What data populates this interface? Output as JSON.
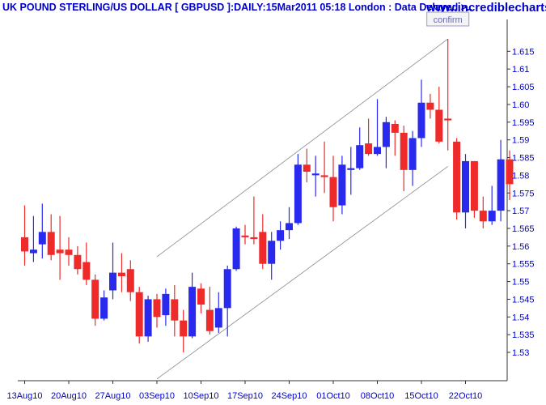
{
  "header": {
    "title": "UK POUND STERLING/US DOLLAR [ GBPUSD ]:DAILY:15Mar2011 05:18 London : Data Delayed >..",
    "brand": "www.incrediblecharts.com"
  },
  "colors": {
    "up": "#2a2aee",
    "down": "#ee2a2a",
    "text": "#0000cc",
    "channel": "#8a8a8a"
  },
  "chart_data": {
    "type": "candlestick",
    "ylim": [
      1.522,
      1.624
    ],
    "y_ticks": [
      1.53,
      1.535,
      1.54,
      1.545,
      1.55,
      1.555,
      1.56,
      1.565,
      1.57,
      1.575,
      1.58,
      1.585,
      1.59,
      1.595,
      1.6,
      1.605,
      1.61,
      1.615
    ],
    "y_tick_labels": [
      "1.53",
      "1.535",
      "1.54",
      "1.545",
      "1.55",
      "1.555",
      "1.56",
      "1.565",
      "1.57",
      "1.575",
      "1.58",
      "1.585",
      "1.59",
      "1.595",
      "1.60",
      "1.605",
      "1.61",
      "1.615"
    ],
    "x_labels": [
      {
        "label": "13Aug10",
        "index": 0
      },
      {
        "label": "20Aug10",
        "index": 5
      },
      {
        "label": "27Aug10",
        "index": 10
      },
      {
        "label": "03Sep10",
        "index": 15
      },
      {
        "label": "10Sep10",
        "index": 20
      },
      {
        "label": "17Sep10",
        "index": 25
      },
      {
        "label": "24Sep10",
        "index": 30
      },
      {
        "label": "01Oct10",
        "index": 35
      },
      {
        "label": "08Oct10",
        "index": 40
      },
      {
        "label": "15Oct10",
        "index": 45
      },
      {
        "label": "22Oct10",
        "index": 50
      }
    ],
    "candles": [
      {
        "o": 1.5625,
        "h": 1.5715,
        "l": 1.5545,
        "c": 1.5585
      },
      {
        "o": 1.558,
        "h": 1.5685,
        "l": 1.5555,
        "c": 1.559
      },
      {
        "o": 1.5605,
        "h": 1.572,
        "l": 1.5565,
        "c": 1.564
      },
      {
        "o": 1.564,
        "h": 1.569,
        "l": 1.556,
        "c": 1.5575
      },
      {
        "o": 1.559,
        "h": 1.5685,
        "l": 1.5505,
        "c": 1.558
      },
      {
        "o": 1.559,
        "h": 1.5625,
        "l": 1.5545,
        "c": 1.5575
      },
      {
        "o": 1.5575,
        "h": 1.56,
        "l": 1.552,
        "c": 1.5535
      },
      {
        "o": 1.5555,
        "h": 1.561,
        "l": 1.549,
        "c": 1.5505
      },
      {
        "o": 1.5505,
        "h": 1.552,
        "l": 1.5375,
        "c": 1.5395
      },
      {
        "o": 1.5395,
        "h": 1.5475,
        "l": 1.539,
        "c": 1.5455
      },
      {
        "o": 1.5475,
        "h": 1.561,
        "l": 1.545,
        "c": 1.5525
      },
      {
        "o": 1.5525,
        "h": 1.558,
        "l": 1.547,
        "c": 1.5515
      },
      {
        "o": 1.5535,
        "h": 1.556,
        "l": 1.5445,
        "c": 1.547
      },
      {
        "o": 1.547,
        "h": 1.5485,
        "l": 1.5325,
        "c": 1.5345
      },
      {
        "o": 1.5345,
        "h": 1.546,
        "l": 1.533,
        "c": 1.545
      },
      {
        "o": 1.545,
        "h": 1.5465,
        "l": 1.537,
        "c": 1.54
      },
      {
        "o": 1.5405,
        "h": 1.548,
        "l": 1.5375,
        "c": 1.5465
      },
      {
        "o": 1.545,
        "h": 1.549,
        "l": 1.5345,
        "c": 1.539
      },
      {
        "o": 1.539,
        "h": 1.542,
        "l": 1.53,
        "c": 1.5345
      },
      {
        "o": 1.5345,
        "h": 1.5525,
        "l": 1.534,
        "c": 1.5485
      },
      {
        "o": 1.548,
        "h": 1.5495,
        "l": 1.541,
        "c": 1.5435
      },
      {
        "o": 1.542,
        "h": 1.5485,
        "l": 1.535,
        "c": 1.536
      },
      {
        "o": 1.537,
        "h": 1.547,
        "l": 1.5355,
        "c": 1.5425
      },
      {
        "o": 1.5425,
        "h": 1.5545,
        "l": 1.5345,
        "c": 1.5535
      },
      {
        "o": 1.5535,
        "h": 1.5655,
        "l": 1.553,
        "c": 1.565
      },
      {
        "o": 1.563,
        "h": 1.566,
        "l": 1.5605,
        "c": 1.5625
      },
      {
        "o": 1.5625,
        "h": 1.574,
        "l": 1.5605,
        "c": 1.562
      },
      {
        "o": 1.564,
        "h": 1.569,
        "l": 1.5535,
        "c": 1.555
      },
      {
        "o": 1.555,
        "h": 1.564,
        "l": 1.5505,
        "c": 1.5615
      },
      {
        "o": 1.5615,
        "h": 1.567,
        "l": 1.559,
        "c": 1.5645
      },
      {
        "o": 1.5645,
        "h": 1.571,
        "l": 1.562,
        "c": 1.5665
      },
      {
        "o": 1.5665,
        "h": 1.586,
        "l": 1.566,
        "c": 1.583
      },
      {
        "o": 1.583,
        "h": 1.5875,
        "l": 1.578,
        "c": 1.581
      },
      {
        "o": 1.58,
        "h": 1.5855,
        "l": 1.574,
        "c": 1.5805
      },
      {
        "o": 1.58,
        "h": 1.5895,
        "l": 1.575,
        "c": 1.5795
      },
      {
        "o": 1.5795,
        "h": 1.5855,
        "l": 1.567,
        "c": 1.571
      },
      {
        "o": 1.5715,
        "h": 1.5855,
        "l": 1.569,
        "c": 1.583
      },
      {
        "o": 1.5815,
        "h": 1.588,
        "l": 1.5745,
        "c": 1.582
      },
      {
        "o": 1.582,
        "h": 1.5935,
        "l": 1.5815,
        "c": 1.5885
      },
      {
        "o": 1.589,
        "h": 1.596,
        "l": 1.5855,
        "c": 1.586
      },
      {
        "o": 1.586,
        "h": 1.6015,
        "l": 1.5855,
        "c": 1.588
      },
      {
        "o": 1.588,
        "h": 1.5965,
        "l": 1.582,
        "c": 1.595
      },
      {
        "o": 1.5945,
        "h": 1.5955,
        "l": 1.5855,
        "c": 1.592
      },
      {
        "o": 1.592,
        "h": 1.594,
        "l": 1.5755,
        "c": 1.5815
      },
      {
        "o": 1.5815,
        "h": 1.5925,
        "l": 1.577,
        "c": 1.5905
      },
      {
        "o": 1.5905,
        "h": 1.607,
        "l": 1.588,
        "c": 1.6005
      },
      {
        "o": 1.6005,
        "h": 1.603,
        "l": 1.596,
        "c": 1.5985
      },
      {
        "o": 1.5985,
        "h": 1.605,
        "l": 1.589,
        "c": 1.5895
      },
      {
        "o": 1.596,
        "h": 1.6185,
        "l": 1.587,
        "c": 1.5955
      },
      {
        "o": 1.5895,
        "h": 1.5905,
        "l": 1.5675,
        "c": 1.5695
      },
      {
        "o": 1.5695,
        "h": 1.586,
        "l": 1.565,
        "c": 1.584
      },
      {
        "o": 1.584,
        "h": 1.584,
        "l": 1.568,
        "c": 1.57
      },
      {
        "o": 1.57,
        "h": 1.574,
        "l": 1.565,
        "c": 1.567
      },
      {
        "o": 1.567,
        "h": 1.577,
        "l": 1.566,
        "c": 1.57
      },
      {
        "o": 1.57,
        "h": 1.59,
        "l": 1.567,
        "c": 1.5845
      },
      {
        "o": 1.5845,
        "h": 1.587,
        "l": 1.573,
        "c": 1.5775
      }
    ],
    "channel": {
      "upper": [
        [
          15,
          1.557
        ],
        [
          48,
          1.6185
        ]
      ],
      "lower": [
        [
          15,
          1.5225
        ],
        [
          48,
          1.5825
        ]
      ]
    },
    "annotation": {
      "text": "confirm",
      "index": 48
    }
  }
}
